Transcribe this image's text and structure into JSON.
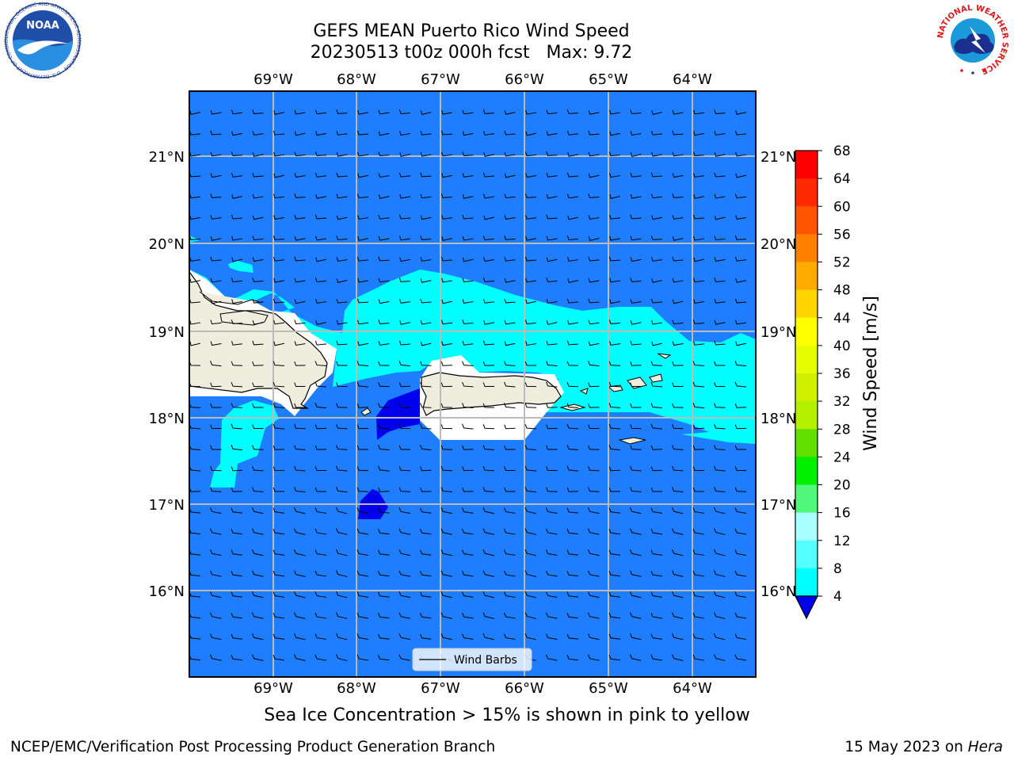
{
  "title": {
    "line1": "GEFS MEAN Puerto Rico Wind Speed",
    "line2": "20230513 t00z 000h fcst   Max: 9.72"
  },
  "map": {
    "lon_labels": [
      "69°W",
      "68°W",
      "67°W",
      "66°W",
      "65°W",
      "64°W"
    ],
    "lat_labels": [
      "21°N",
      "20°N",
      "19°N",
      "18°N",
      "17°N",
      "16°N"
    ],
    "legend_label": "Wind Barbs",
    "colors": {
      "ocean_8": "#1e7eff",
      "band_12": "#00ffff",
      "band_4": "#0000ee",
      "land": "#efedde"
    }
  },
  "colorbar": {
    "label": "Wind Speed [m/s]",
    "ticks": [
      "68",
      "64",
      "60",
      "56",
      "52",
      "48",
      "44",
      "40",
      "36",
      "32",
      "28",
      "24",
      "20",
      "16",
      "12",
      "8",
      "4"
    ],
    "colors": [
      "#ff0000",
      "#ff2a00",
      "#ff5500",
      "#ff8000",
      "#ffaa00",
      "#ffd500",
      "#ffff00",
      "#e6ff00",
      "#d0f000",
      "#b5ef00",
      "#60e000",
      "#00f000",
      "#50f87c",
      "#aaffff",
      "#55ffff",
      "#00ffff",
      "#1e7eff"
    ],
    "extend_color": "#0000ee"
  },
  "caption": "Sea Ice Concentration > 15% is shown in pink to yellow",
  "footer": {
    "left": "NCEP/EMC/Verification Post Processing Product Generation Branch",
    "right_date": "15 May 2023 on ",
    "right_host": "Hera"
  },
  "logos": {
    "noaa": {
      "text": "NOAA",
      "ring": "NATIONAL OCEANIC AND ATMOSPHERIC ADMINISTRATION · U.S. DEPARTMENT OF COMMERCE"
    },
    "nws": {
      "ring": "NATIONAL WEATHER SERVICE"
    }
  }
}
